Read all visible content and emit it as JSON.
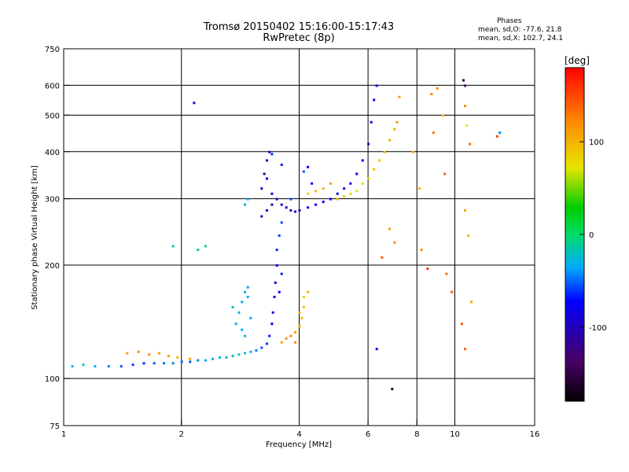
{
  "chart_data": {
    "type": "scatter",
    "title": "Tromsø 20150402 15:16:00-15:17:43",
    "subtitle": "RwPretec (8p)",
    "xlabel": "Frequency [MHz]",
    "ylabel": "Stationary phase Virtual Height [km]",
    "x_scale": "log",
    "y_scale": "log",
    "xlim": [
      1,
      16
    ],
    "ylim": [
      75,
      750
    ],
    "x_ticks": [
      1,
      2,
      4,
      6,
      8,
      10,
      16
    ],
    "y_ticks": [
      75,
      100,
      200,
      300,
      400,
      500,
      600,
      750
    ],
    "grid_x": [
      2,
      4,
      6,
      8,
      10
    ],
    "grid_y": [
      100,
      200,
      300,
      400,
      500,
      600
    ],
    "colorbar": {
      "label": "[deg]",
      "min": -180,
      "max": 180,
      "ticks": [
        100,
        0,
        -100
      ]
    },
    "stats": {
      "title": "Phases",
      "line_o": "mean, sd,O: -77.6, 21.8",
      "line_x": "mean, sd,X: 102.7, 24.1"
    },
    "series": [
      {
        "values": [
          [
            1.05,
            108,
            -45
          ],
          [
            1.12,
            109,
            -40
          ],
          [
            1.2,
            108,
            -60
          ],
          [
            1.3,
            108,
            -70
          ],
          [
            1.4,
            108,
            -80
          ],
          [
            1.5,
            109,
            -85
          ],
          [
            1.6,
            110,
            -90
          ],
          [
            1.7,
            110,
            -80
          ],
          [
            1.8,
            110,
            -75
          ],
          [
            1.9,
            110,
            -70
          ],
          [
            2.0,
            111,
            -75
          ],
          [
            2.1,
            111,
            -80
          ],
          [
            2.2,
            112,
            -70
          ],
          [
            2.3,
            112,
            -60
          ],
          [
            2.4,
            113,
            -55
          ],
          [
            2.5,
            114,
            -50
          ],
          [
            2.6,
            114,
            -45
          ],
          [
            2.7,
            115,
            -40
          ],
          [
            2.8,
            116,
            -40
          ],
          [
            2.9,
            117,
            -50
          ],
          [
            3.0,
            118,
            -60
          ],
          [
            3.1,
            119,
            -70
          ],
          [
            3.2,
            121,
            -80
          ],
          [
            3.3,
            124,
            -90
          ],
          [
            3.35,
            130,
            -95
          ],
          [
            3.4,
            140,
            -100
          ],
          [
            3.42,
            150,
            -105
          ],
          [
            3.45,
            165,
            -110
          ],
          [
            3.47,
            180,
            -110
          ],
          [
            3.5,
            200,
            -100
          ],
          [
            3.5,
            220,
            -90
          ],
          [
            3.55,
            240,
            -85
          ],
          [
            3.6,
            260,
            -85
          ],
          [
            3.6,
            190,
            -95
          ],
          [
            3.55,
            170,
            -100
          ]
        ]
      },
      {
        "values": [
          [
            2.75,
            140,
            -55
          ],
          [
            2.8,
            150,
            -50
          ],
          [
            2.85,
            160,
            -55
          ],
          [
            2.9,
            170,
            -55
          ],
          [
            2.95,
            175,
            -60
          ],
          [
            2.85,
            135,
            -55
          ],
          [
            3.0,
            145,
            -60
          ],
          [
            2.7,
            155,
            -45
          ],
          [
            2.9,
            130,
            -50
          ],
          [
            2.95,
            165,
            -55
          ]
        ]
      },
      {
        "values": [
          [
            3.2,
            270,
            -120
          ],
          [
            3.3,
            280,
            -125
          ],
          [
            3.4,
            290,
            -120
          ],
          [
            3.5,
            300,
            -115
          ],
          [
            3.6,
            290,
            -110
          ],
          [
            3.7,
            285,
            -115
          ],
          [
            3.8,
            280,
            -120
          ],
          [
            3.9,
            278,
            -118
          ],
          [
            4.0,
            280,
            -115
          ],
          [
            4.2,
            285,
            -110
          ],
          [
            4.4,
            290,
            -105
          ],
          [
            4.6,
            295,
            -100
          ],
          [
            4.8,
            300,
            -100
          ],
          [
            5.0,
            310,
            -105
          ],
          [
            5.2,
            320,
            -100
          ],
          [
            5.4,
            330,
            -95
          ],
          [
            5.6,
            350,
            -100
          ],
          [
            5.8,
            380,
            -105
          ],
          [
            6.0,
            420,
            -110
          ],
          [
            6.1,
            480,
            -100
          ],
          [
            6.2,
            550,
            -110
          ],
          [
            6.3,
            600,
            -100
          ],
          [
            3.2,
            320,
            -120
          ],
          [
            3.25,
            350,
            -125
          ],
          [
            3.3,
            380,
            -115
          ],
          [
            3.35,
            400,
            -110
          ],
          [
            3.3,
            340,
            -100
          ],
          [
            3.4,
            310,
            -110
          ]
        ]
      },
      {
        "values": [
          [
            3.6,
            125,
            110
          ],
          [
            3.7,
            128,
            115
          ],
          [
            3.8,
            130,
            120
          ],
          [
            3.9,
            133,
            110
          ],
          [
            4.0,
            138,
            100
          ],
          [
            4.05,
            145,
            95
          ],
          [
            4.1,
            155,
            90
          ],
          [
            4.1,
            165,
            85
          ],
          [
            4.2,
            170,
            90
          ],
          [
            4.0,
            150,
            100
          ],
          [
            3.9,
            125,
            120
          ]
        ]
      },
      {
        "values": [
          [
            4.2,
            310,
            80
          ],
          [
            4.4,
            315,
            90
          ],
          [
            4.6,
            320,
            100
          ],
          [
            4.8,
            330,
            110
          ],
          [
            5.0,
            300,
            90
          ],
          [
            5.2,
            305,
            85
          ],
          [
            5.4,
            310,
            80
          ],
          [
            5.6,
            315,
            75
          ],
          [
            5.8,
            330,
            80
          ],
          [
            6.0,
            340,
            80
          ],
          [
            6.2,
            360,
            85
          ],
          [
            6.4,
            380,
            90
          ],
          [
            6.6,
            400,
            95
          ],
          [
            6.8,
            430,
            100
          ],
          [
            7.0,
            460,
            100
          ],
          [
            7.1,
            480,
            110
          ]
        ]
      },
      {
        "values": [
          [
            1.45,
            117,
            110
          ],
          [
            1.55,
            118,
            115
          ],
          [
            1.65,
            116,
            120
          ],
          [
            1.75,
            117,
            110
          ],
          [
            1.85,
            115,
            105
          ],
          [
            1.95,
            114,
            100
          ],
          [
            2.1,
            113,
            105
          ]
        ]
      },
      {
        "values": [
          [
            3.4,
            395,
            -90
          ],
          [
            3.6,
            370,
            -95
          ],
          [
            3.8,
            300,
            -85
          ],
          [
            4.1,
            355,
            -80
          ],
          [
            4.2,
            365,
            -100
          ],
          [
            4.3,
            330,
            -95
          ],
          [
            2.2,
            220,
            -35
          ],
          [
            2.3,
            225,
            -30
          ],
          [
            1.9,
            225,
            -40
          ],
          [
            2.15,
            540,
            -120
          ],
          [
            2.9,
            290,
            -50
          ],
          [
            2.95,
            300,
            -60
          ],
          [
            6.3,
            120,
            -110
          ],
          [
            6.9,
            94,
            -160
          ],
          [
            10.5,
            620,
            -160
          ],
          [
            10.6,
            600,
            -150
          ],
          [
            9.0,
            590,
            120
          ],
          [
            8.8,
            450,
            130
          ],
          [
            9.4,
            350,
            140
          ],
          [
            10.6,
            280,
            110
          ],
          [
            10.8,
            240,
            90
          ],
          [
            12.8,
            440,
            150
          ],
          [
            13.0,
            450,
            -70
          ],
          [
            7.8,
            400,
            100
          ],
          [
            6.5,
            210,
            140
          ],
          [
            8.2,
            220,
            120
          ],
          [
            9.5,
            190,
            130
          ],
          [
            9.8,
            170,
            140
          ],
          [
            11.0,
            160,
            110
          ],
          [
            10.4,
            140,
            140
          ],
          [
            10.6,
            120,
            140
          ],
          [
            8.5,
            196,
            160
          ],
          [
            8.7,
            570,
            120
          ],
          [
            7.2,
            560,
            110
          ],
          [
            9.3,
            500,
            90
          ],
          [
            10.7,
            470,
            70
          ],
          [
            10.9,
            420,
            130
          ],
          [
            10.6,
            530,
            120
          ],
          [
            8.1,
            320,
            100
          ],
          [
            6.8,
            250,
            110
          ],
          [
            7.0,
            230,
            120
          ]
        ]
      }
    ]
  }
}
